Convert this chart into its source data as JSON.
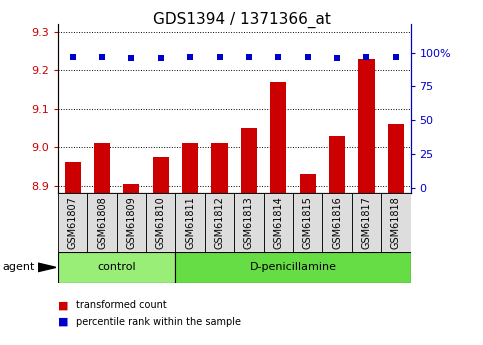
{
  "title": "GDS1394 / 1371366_at",
  "samples": [
    "GSM61807",
    "GSM61808",
    "GSM61809",
    "GSM61810",
    "GSM61811",
    "GSM61812",
    "GSM61813",
    "GSM61814",
    "GSM61815",
    "GSM61816",
    "GSM61817",
    "GSM61818"
  ],
  "transformed_count": [
    8.96,
    9.01,
    8.905,
    8.975,
    9.01,
    9.01,
    9.05,
    9.17,
    8.93,
    9.03,
    9.23,
    9.06
  ],
  "percentile_rank": [
    97,
    97,
    96,
    96,
    97,
    97,
    97,
    97,
    97,
    96,
    97,
    97
  ],
  "ylim_left": [
    8.88,
    9.32
  ],
  "ylim_right": [
    -4,
    121
  ],
  "yticks_left": [
    8.9,
    9.0,
    9.1,
    9.2,
    9.3
  ],
  "yticks_right": [
    0,
    25,
    50,
    75,
    100
  ],
  "ytick_labels_right": [
    "0",
    "25",
    "50",
    "75",
    "100%"
  ],
  "bar_color": "#cc0000",
  "dot_color": "#0000cc",
  "bar_bottom": 8.88,
  "control_count": 4,
  "control_label": "control",
  "control_color": "#99ee77",
  "dpen_label": "D-penicillamine",
  "dpen_color": "#66dd44",
  "sample_box_color": "#dddddd",
  "legend_bar_label": "transformed count",
  "legend_dot_label": "percentile rank within the sample",
  "agent_label": "agent",
  "background_color": "#ffffff",
  "tick_label_color_left": "#cc0000",
  "tick_label_color_right": "#0000cc",
  "title_fontsize": 11,
  "tick_fontsize": 8,
  "sample_fontsize": 7,
  "label_fontsize": 8
}
